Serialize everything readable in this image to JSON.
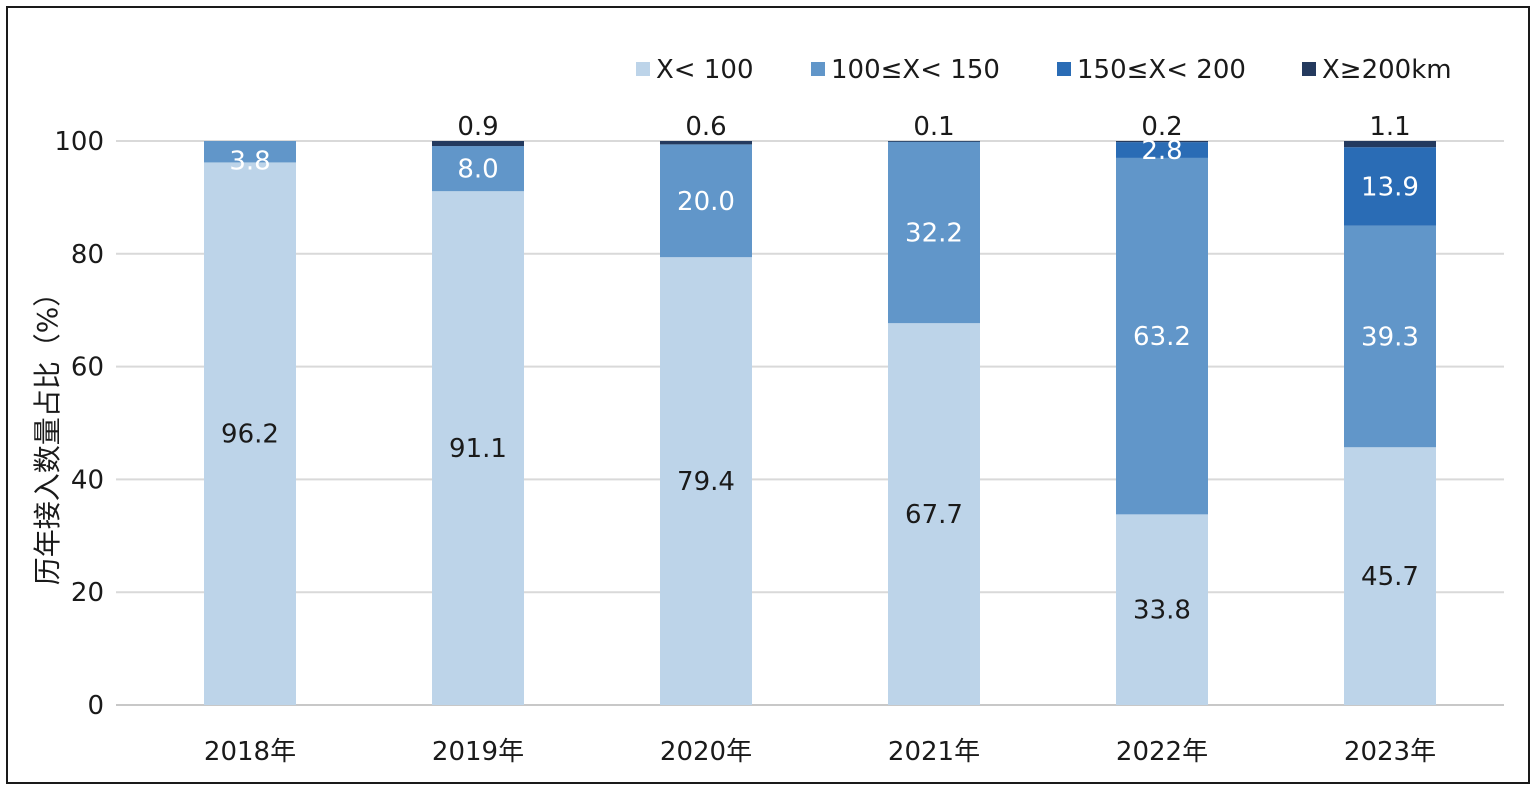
{
  "chart_data": {
    "type": "bar",
    "stacked": true,
    "categories": [
      "2018年",
      "2019年",
      "2020年",
      "2021年",
      "2022年",
      "2023年"
    ],
    "ylabel": "历年接入数量占比（%）",
    "ylim": [
      0,
      100
    ],
    "yticks": [
      0,
      20,
      40,
      60,
      80,
      100
    ],
    "grid": true,
    "legend_position": "top-right",
    "series": [
      {
        "name": "X< 100",
        "color": "#bdd4e9",
        "label_color": "#1a1a1a",
        "values": [
          96.2,
          91.1,
          79.4,
          67.7,
          33.8,
          45.7
        ],
        "labels": [
          "96.2",
          "91.1",
          "79.4",
          "67.7",
          "33.8",
          "45.7"
        ]
      },
      {
        "name": "100≤X< 150",
        "color": "#6196c9",
        "label_color": "#ffffff",
        "values": [
          3.8,
          8.0,
          20.0,
          32.2,
          63.2,
          39.3
        ],
        "labels": [
          "3.8",
          "8.0",
          "20.0",
          "32.2",
          "63.2",
          "39.3"
        ]
      },
      {
        "name": "150≤X< 200",
        "color": "#2a6cb5",
        "label_color": "#ffffff",
        "values": [
          0,
          0,
          0,
          0,
          2.8,
          13.9
        ],
        "labels": [
          "",
          "",
          "",
          "",
          "2.8",
          "13.9"
        ]
      },
      {
        "name": "X≥200km",
        "color": "#243a5e",
        "label_color": "#1a1a1a",
        "values": [
          0,
          0.9,
          0.6,
          0.1,
          0.2,
          1.1
        ],
        "labels": [
          "",
          "0.9",
          "0.6",
          "0.1",
          "0.2",
          "1.1"
        ]
      }
    ]
  }
}
